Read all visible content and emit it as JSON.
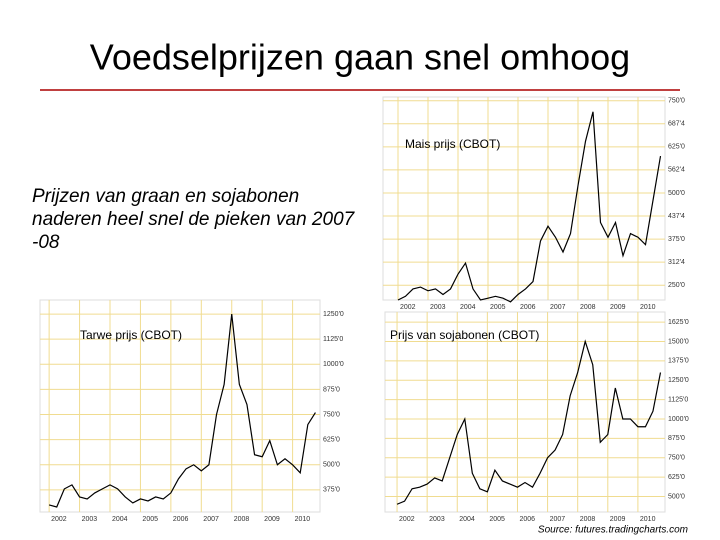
{
  "title": "Voedselprijzen gaan snel omhoog",
  "text": [
    "Prijzen van graan en sojabonen",
    "naderen heel snel de pieken van 2007",
    "-08"
  ],
  "source": "Source: futures.tradingcharts.com",
  "chart_data": [
    {
      "type": "line",
      "title": "Mais prijs (CBOT)",
      "color": "#000000",
      "grid": true,
      "x": [
        2002,
        2002.25,
        2002.5,
        2002.75,
        2003,
        2003.25,
        2003.5,
        2003.75,
        2004,
        2004.25,
        2004.5,
        2004.75,
        2005,
        2005.25,
        2005.5,
        2005.75,
        2006,
        2006.25,
        2006.5,
        2006.75,
        2007,
        2007.25,
        2007.5,
        2007.75,
        2008,
        2008.25,
        2008.5,
        2008.75,
        2009,
        2009.25,
        2009.5,
        2009.75,
        2010,
        2010.25,
        2010.5,
        2010.75
      ],
      "values": [
        210,
        220,
        240,
        245,
        235,
        240,
        225,
        240,
        280,
        310,
        240,
        210,
        215,
        220,
        215,
        205,
        225,
        240,
        260,
        370,
        410,
        380,
        340,
        390,
        520,
        640,
        720,
        420,
        380,
        420,
        330,
        390,
        380,
        360,
        480,
        600
      ],
      "xlim": [
        2001.5,
        2010.9
      ],
      "xticks": [
        2002,
        2003,
        2004,
        2005,
        2006,
        2007,
        2008,
        2009,
        2010
      ],
      "ylim": [
        210,
        760
      ],
      "yticks": [
        {
          "value": 250,
          "label": "250'0"
        },
        {
          "value": 312.5,
          "label": "312'4"
        },
        {
          "value": 375,
          "label": "375'0"
        },
        {
          "value": 437.5,
          "label": "437'4"
        },
        {
          "value": 500,
          "label": "500'0"
        },
        {
          "value": 562.5,
          "label": "562'4"
        },
        {
          "value": 625,
          "label": "625'0"
        },
        {
          "value": 687.5,
          "label": "687'4"
        },
        {
          "value": 750,
          "label": "750'0"
        }
      ]
    },
    {
      "type": "line",
      "title": "Tarwe prijs (CBOT)",
      "color": "#000000",
      "grid": true,
      "x": [
        2002,
        2002.25,
        2002.5,
        2002.75,
        2003,
        2003.25,
        2003.5,
        2003.75,
        2004,
        2004.25,
        2004.5,
        2004.75,
        2005,
        2005.25,
        2005.5,
        2005.75,
        2006,
        2006.25,
        2006.5,
        2006.75,
        2007,
        2007.25,
        2007.5,
        2007.75,
        2008,
        2008.25,
        2008.5,
        2008.75,
        2009,
        2009.25,
        2009.5,
        2009.75,
        2010,
        2010.25,
        2010.5,
        2010.75
      ],
      "values": [
        300,
        290,
        380,
        400,
        340,
        330,
        360,
        380,
        400,
        380,
        340,
        310,
        330,
        320,
        340,
        330,
        360,
        430,
        480,
        500,
        470,
        500,
        750,
        900,
        1250,
        900,
        800,
        550,
        540,
        620,
        500,
        530,
        500,
        460,
        700,
        760
      ],
      "xlim": [
        2001.7,
        2010.9
      ],
      "xticks": [
        2002,
        2003,
        2004,
        2005,
        2006,
        2007,
        2008,
        2009,
        2010
      ],
      "ylim": [
        265,
        1320
      ],
      "yticks": [
        {
          "value": 375,
          "label": "375'0"
        },
        {
          "value": 500,
          "label": "500'0"
        },
        {
          "value": 625,
          "label": "625'0"
        },
        {
          "value": 750,
          "label": "750'0"
        },
        {
          "value": 875,
          "label": "875'0"
        },
        {
          "value": 1000,
          "label": "1000'0"
        },
        {
          "value": 1125,
          "label": "1125'0"
        },
        {
          "value": 1250,
          "label": "1250'0"
        }
      ]
    },
    {
      "type": "line",
      "title": "Prijs van sojabonen (CBOT)",
      "color": "#000000",
      "grid": true,
      "x": [
        2002,
        2002.25,
        2002.5,
        2002.75,
        2003,
        2003.25,
        2003.5,
        2003.75,
        2004,
        2004.25,
        2004.5,
        2004.75,
        2005,
        2005.25,
        2005.5,
        2005.75,
        2006,
        2006.25,
        2006.5,
        2006.75,
        2007,
        2007.25,
        2007.5,
        2007.75,
        2008,
        2008.25,
        2008.5,
        2008.75,
        2009,
        2009.25,
        2009.5,
        2009.75,
        2010,
        2010.25,
        2010.5,
        2010.75
      ],
      "values": [
        450,
        470,
        550,
        560,
        580,
        620,
        600,
        750,
        900,
        1000,
        650,
        550,
        530,
        670,
        600,
        580,
        560,
        590,
        560,
        650,
        750,
        800,
        900,
        1150,
        1300,
        1500,
        1350,
        850,
        900,
        1200,
        1000,
        1000,
        950,
        950,
        1050,
        1300
      ],
      "xlim": [
        2001.6,
        2010.9
      ],
      "xticks": [
        2002,
        2003,
        2004,
        2005,
        2006,
        2007,
        2008,
        2009,
        2010
      ],
      "ylim": [
        400,
        1690
      ],
      "yticks": [
        {
          "value": 500,
          "label": "500'0"
        },
        {
          "value": 625,
          "label": "625'0"
        },
        {
          "value": 750,
          "label": "750'0"
        },
        {
          "value": 875,
          "label": "875'0"
        },
        {
          "value": 1000,
          "label": "1000'0"
        },
        {
          "value": 1125,
          "label": "1125'0"
        },
        {
          "value": 1250,
          "label": "1250'0"
        },
        {
          "value": 1375,
          "label": "1375'0"
        },
        {
          "value": 1500,
          "label": "1500'0"
        },
        {
          "value": 1625,
          "label": "1625'0"
        }
      ]
    }
  ]
}
